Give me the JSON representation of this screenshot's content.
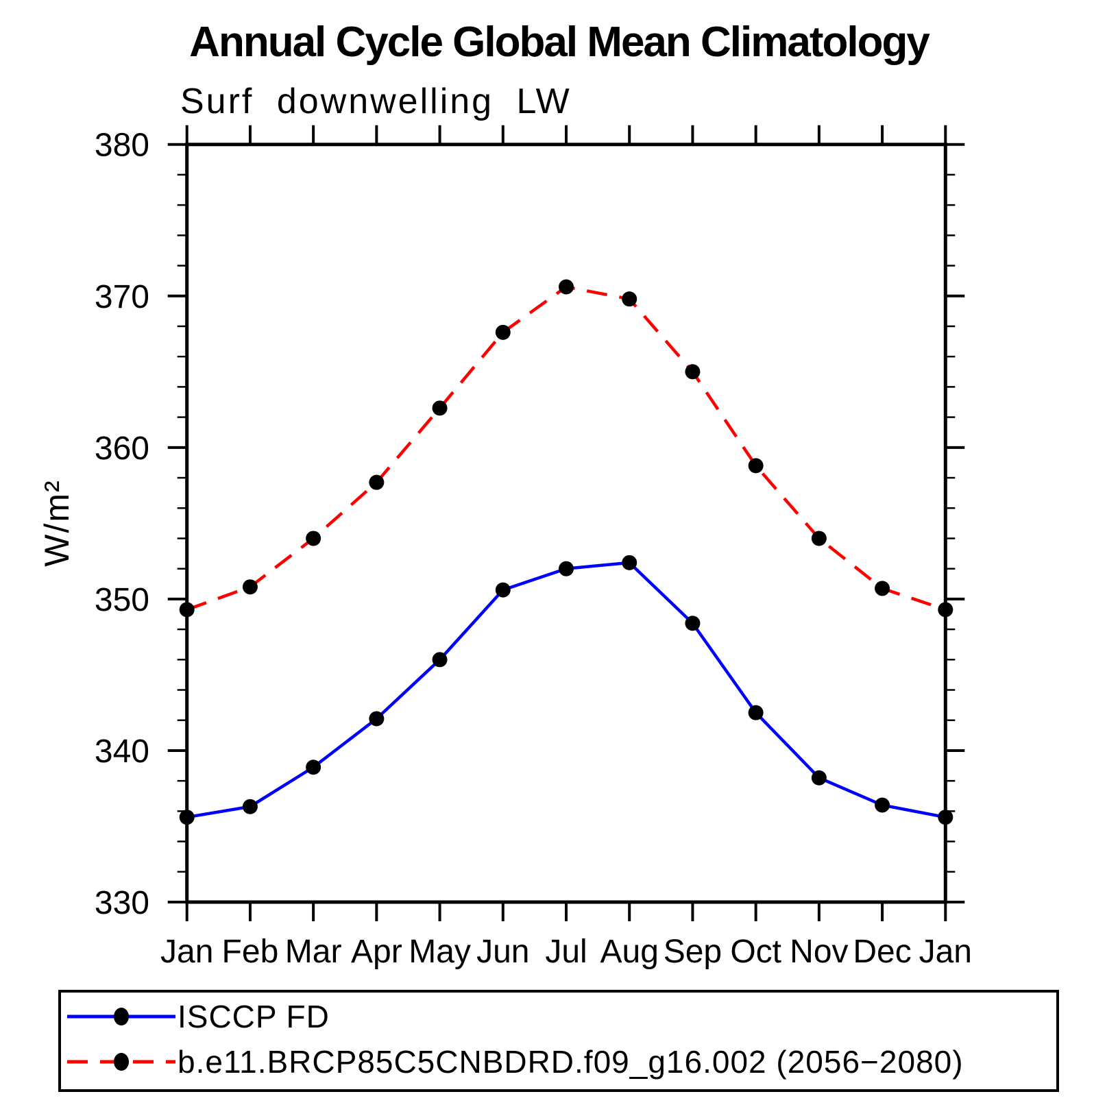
{
  "title": "Annual Cycle Global Mean Climatology",
  "subtitle": "Surf downwelling LW",
  "chart_data": {
    "type": "line",
    "title": "Annual Cycle Global Mean Climatology",
    "subtitle": "Surf downwelling LW",
    "xlabel": "",
    "ylabel": "W/m²",
    "x_categories": [
      "Jan",
      "Feb",
      "Mar",
      "Apr",
      "May",
      "Jun",
      "Jul",
      "Aug",
      "Sep",
      "Oct",
      "Nov",
      "Dec",
      "Jan"
    ],
    "ylim": [
      330,
      380
    ],
    "ytick_major_interval": 10,
    "ytick_minor_interval": 2,
    "ytick_major_labels": [
      "330",
      "340",
      "350",
      "360",
      "370",
      "380"
    ],
    "grid": false,
    "legend_position": "bottom",
    "marker": {
      "shape": "filled-circle",
      "color": "#000000"
    },
    "series": [
      {
        "name": "ISCCP FD",
        "color": "#0000ff",
        "line_style": "solid",
        "values": [
          335.6,
          336.3,
          338.9,
          342.1,
          346.0,
          350.6,
          352.0,
          352.4,
          348.4,
          342.5,
          338.2,
          336.4,
          335.6
        ]
      },
      {
        "name": "b.e11.BRCP85C5CNBDRD.f09_g16.002 (2056−2080)",
        "color": "#ff0000",
        "line_style": "dashed",
        "values": [
          349.3,
          350.8,
          354.0,
          357.7,
          362.6,
          367.6,
          370.6,
          369.8,
          365.0,
          358.8,
          354.0,
          350.7,
          349.3
        ]
      }
    ]
  }
}
